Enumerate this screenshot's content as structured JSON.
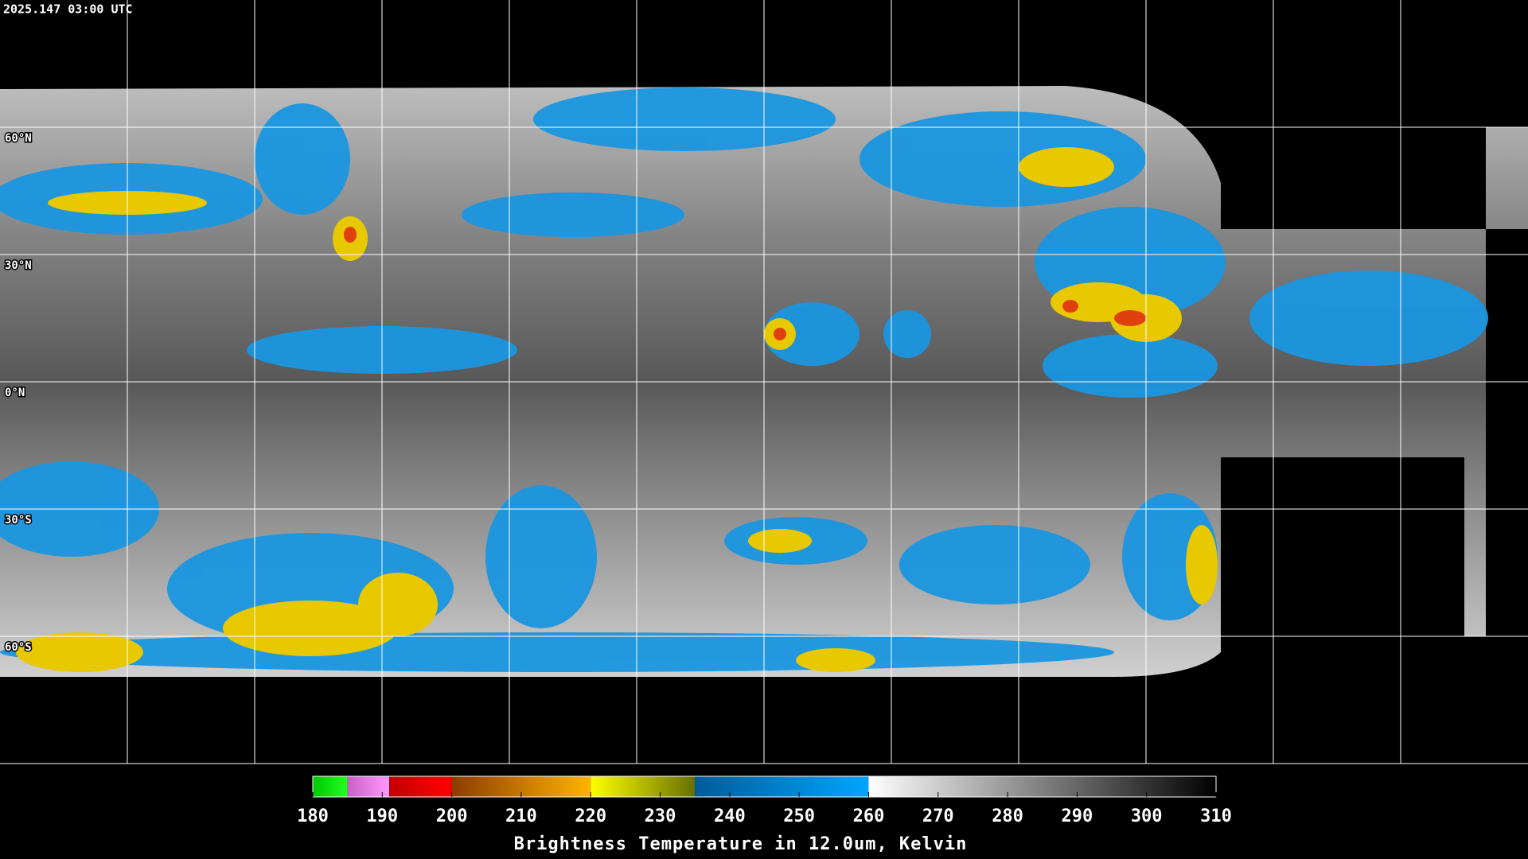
{
  "header": {
    "timestamp": "2025.147 03:00 UTC"
  },
  "map": {
    "ylim": [
      -90,
      90
    ],
    "latitudes": [
      {
        "value": 60,
        "label": "60°N"
      },
      {
        "value": 30,
        "label": "30°N"
      },
      {
        "value": 0,
        "label": "0°N"
      },
      {
        "value": -30,
        "label": "30°S"
      },
      {
        "value": -60,
        "label": "60°S"
      }
    ]
  },
  "colorbar": {
    "title": "Brightness Temperature in 12.0um, Kelvin",
    "lim": [
      180,
      310
    ],
    "ticks": [
      180,
      190,
      200,
      210,
      220,
      230,
      240,
      250,
      260,
      270,
      280,
      290,
      300,
      310
    ],
    "segments": [
      {
        "from": 180,
        "to": 185,
        "colors": [
          "#00c800",
          "#22ff22"
        ]
      },
      {
        "from": 185,
        "to": 191,
        "colors": [
          "#c860c8",
          "#ff98ff"
        ]
      },
      {
        "from": 191,
        "to": 200,
        "colors": [
          "#c00000",
          "#ff0000"
        ]
      },
      {
        "from": 200,
        "to": 220,
        "colors": [
          "#8b3c00",
          "#ffb400"
        ]
      },
      {
        "from": 220,
        "to": 235,
        "colors": [
          "#ffff00",
          "#687000"
        ]
      },
      {
        "from": 235,
        "to": 260,
        "colors": [
          "#005c98",
          "#00a4ff"
        ]
      },
      {
        "from": 260,
        "to": 310,
        "colors": [
          "#ffffff",
          "#000000"
        ]
      }
    ]
  }
}
